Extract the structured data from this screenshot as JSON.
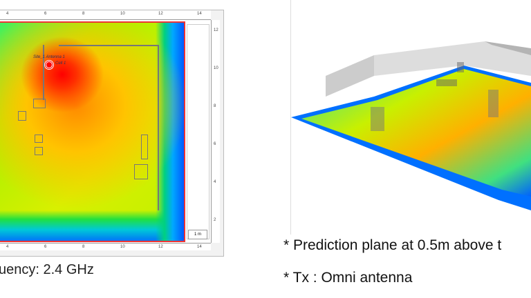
{
  "left_panel": {
    "ruler_top": [
      "4",
      "6",
      "8",
      "10",
      "12",
      "14"
    ],
    "ruler_bottom": [
      "4",
      "6",
      "8",
      "10",
      "12",
      "14"
    ],
    "ruler_right": [
      "12",
      "10",
      "8",
      "6",
      "4",
      "2"
    ],
    "antenna_label": "Site_1 Antenna 1",
    "cell_label": "Cell 1",
    "scale_label": "1 m",
    "caption": "uency: 2.4 GHz"
  },
  "right_panel": {
    "note_plane": "* Prediction plane at 0.5m above t",
    "note_tx": "* Tx : Omni antenna"
  },
  "colors": {
    "strong": "#ff0000",
    "medium": "#ffc400",
    "weak": "#00a8ff",
    "border": "#ee3333"
  }
}
